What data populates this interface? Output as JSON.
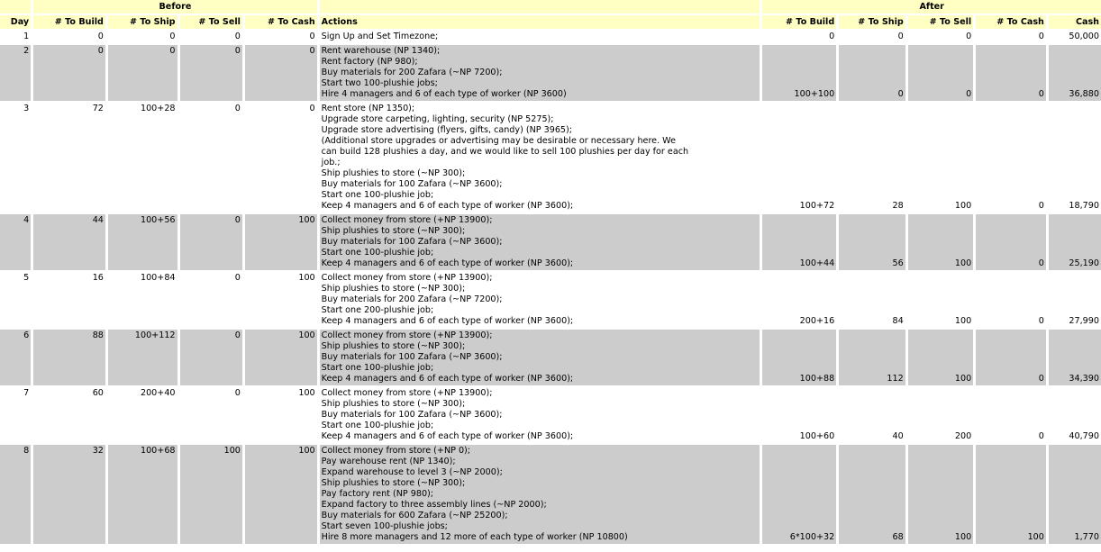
{
  "headers": {
    "before": "Before",
    "after": "After",
    "columns": [
      "Day",
      "# To Build",
      "# To Ship",
      "# To Sell",
      "# To Cash",
      "Actions",
      "# To Build",
      "# To Ship",
      "# To Sell",
      "# To Cash",
      "Cash"
    ]
  },
  "colors": {
    "header_bg": "#ffffc4",
    "alt_row_bg": "#cccccc"
  },
  "rows": [
    {
      "day": "1",
      "before": [
        "0",
        "0",
        "0",
        "0"
      ],
      "actions": [
        "Sign Up and Set Timezone;"
      ],
      "after": [
        "0",
        "0",
        "0",
        "0",
        "50,000"
      ]
    },
    {
      "day": "2",
      "before": [
        "0",
        "0",
        "0",
        "0"
      ],
      "actions": [
        "Rent warehouse (NP 1340);",
        "Rent factory (NP 980);",
        "Buy materials for 200 Zafara (~NP 7200);",
        "Start two 100-plushie jobs;",
        "Hire 4 managers and 6 of each type of worker (NP 3600)"
      ],
      "after": [
        "100+100",
        "0",
        "0",
        "0",
        "36,880"
      ]
    },
    {
      "day": "3",
      "before": [
        "72",
        "100+28",
        "0",
        "0"
      ],
      "actions": [
        "Rent store (NP 1350);",
        "Upgrade store carpeting, lighting, security (NP 5275);",
        "Upgrade store advertising (flyers, gifts, candy) (NP 3965);",
        "(Additional store upgrades or advertising may be desirable or necessary here. We",
        "can build 128 plushies a day, and we would like to sell 100 plushies per day for each",
        "job.;",
        "Ship plushies to store (~NP 300);",
        "Buy materials for 100 Zafara (~NP 3600);",
        "Start one 100-plushie job;",
        "Keep 4 managers and 6 of each type of worker (NP 3600);"
      ],
      "after": [
        "100+72",
        "28",
        "100",
        "0",
        "18,790"
      ]
    },
    {
      "day": "4",
      "before": [
        "44",
        "100+56",
        "0",
        "100"
      ],
      "actions": [
        "Collect money from store (+NP 13900);",
        "Ship plushies to store (~NP 300);",
        "Buy materials for 100 Zafara (~NP 3600);",
        "Start one 100-plushie job;",
        "Keep 4 managers and 6 of each type of worker (NP 3600);"
      ],
      "after": [
        "100+44",
        "56",
        "100",
        "0",
        "25,190"
      ]
    },
    {
      "day": "5",
      "before": [
        "16",
        "100+84",
        "0",
        "100"
      ],
      "actions": [
        "Collect money from store (+NP 13900);",
        "Ship plushies to store (~NP 300);",
        "Buy materials for 200 Zafara (~NP 7200);",
        "Start one 200-plushie job;",
        "Keep 4 managers and 6 of each type of worker (NP 3600);"
      ],
      "after": [
        "200+16",
        "84",
        "100",
        "0",
        "27,990"
      ]
    },
    {
      "day": "6",
      "before": [
        "88",
        "100+112",
        "0",
        "100"
      ],
      "actions": [
        "Collect money from store (+NP 13900);",
        "Ship plushies to store (~NP 300);",
        "Buy materials for 100 Zafara (~NP 3600);",
        "Start one 100-plushie job;",
        "Keep 4 managers and 6 of each type of worker (NP 3600);"
      ],
      "after": [
        "100+88",
        "112",
        "100",
        "0",
        "34,390"
      ]
    },
    {
      "day": "7",
      "before": [
        "60",
        "200+40",
        "0",
        "100"
      ],
      "actions": [
        "Collect money from store (+NP 13900);",
        "Ship plushies to store (~NP 300);",
        "Buy materials for 100 Zafara (~NP 3600);",
        "Start one 100-plushie job;",
        "Keep 4 managers and 6 of each type of worker (NP 3600);"
      ],
      "after": [
        "100+60",
        "40",
        "200",
        "0",
        "40,790"
      ]
    },
    {
      "day": "8",
      "before": [
        "32",
        "100+68",
        "100",
        "100"
      ],
      "actions": [
        "Collect money from store (+NP 0);",
        "Pay warehouse rent (NP 1340);",
        "Expand warehouse to level 3 (~NP 2000);",
        "Ship plushies to store (~NP 300);",
        "Pay factory rent (NP 980);",
        "Expand factory to three assembly lines (~NP 2000);",
        "Buy materials for 600 Zafara (~NP 25200);",
        "Start seven 100-plushie jobs;",
        "Hire 8 more managers and 12 more of each type of worker (NP 10800)"
      ],
      "after": [
        "6*100+32",
        "68",
        "100",
        "100",
        "1,770"
      ]
    }
  ]
}
